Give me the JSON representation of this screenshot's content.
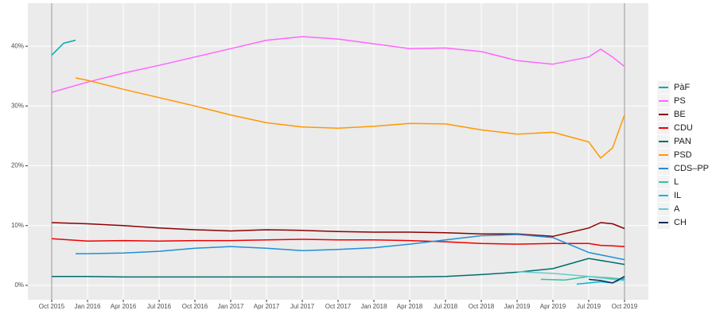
{
  "chart_data": {
    "type": "line",
    "xlim": [
      "2015-08",
      "2019-12"
    ],
    "ylim": [
      -2.4,
      47.2
    ],
    "grid": true,
    "legend": "right",
    "xticks": [
      {
        "value": "2015-10",
        "label": "Oct 2015"
      },
      {
        "value": "2016-01",
        "label": "Jan 2016"
      },
      {
        "value": "2016-04",
        "label": "Apr 2016"
      },
      {
        "value": "2016-07",
        "label": "Jul 2016"
      },
      {
        "value": "2016-10",
        "label": "Oct 2016"
      },
      {
        "value": "2017-01",
        "label": "Jan 2017"
      },
      {
        "value": "2017-04",
        "label": "Apr 2017"
      },
      {
        "value": "2017-07",
        "label": "Jul 2017"
      },
      {
        "value": "2017-10",
        "label": "Oct 2017"
      },
      {
        "value": "2018-01",
        "label": "Jan 2018"
      },
      {
        "value": "2018-04",
        "label": "Apr 2018"
      },
      {
        "value": "2018-07",
        "label": "Jul 2018"
      },
      {
        "value": "2018-10",
        "label": "Oct 2018"
      },
      {
        "value": "2019-01",
        "label": "Jan 2019"
      },
      {
        "value": "2019-04",
        "label": "Apr 2019"
      },
      {
        "value": "2019-07",
        "label": "Jul 2019"
      },
      {
        "value": "2019-10",
        "label": "Oct 2019"
      }
    ],
    "yticks": [
      {
        "value": 0,
        "label": "0%"
      },
      {
        "value": 10,
        "label": "10%"
      },
      {
        "value": 20,
        "label": "20%"
      },
      {
        "value": 30,
        "label": "30%"
      },
      {
        "value": 40,
        "label": "40%"
      }
    ],
    "series": [
      {
        "name": "PàF",
        "color": "#00a9a9",
        "x": [
          "2015-10",
          "2015-11",
          "2015-12"
        ],
        "values": [
          38.5,
          40.5,
          41
        ]
      },
      {
        "name": "PS",
        "color": "#ff66ff",
        "x": [
          "2015-10",
          "2016-01",
          "2016-04",
          "2016-07",
          "2016-10",
          "2017-01",
          "2017-04",
          "2017-07",
          "2017-10",
          "2018-01",
          "2018-04",
          "2018-07",
          "2018-10",
          "2019-01",
          "2019-04",
          "2019-07",
          "2019-08",
          "2019-09",
          "2019-10"
        ],
        "values": [
          32.3,
          34,
          35.5,
          36.8,
          38.2,
          39.6,
          41,
          41.6,
          41.2,
          40.4,
          39.6,
          39.7,
          39.1,
          37.6,
          37,
          38.2,
          39.5,
          38.2,
          36.6
        ]
      },
      {
        "name": "BE",
        "color": "#8b0000",
        "x": [
          "2015-10",
          "2016-01",
          "2016-04",
          "2016-07",
          "2016-10",
          "2017-01",
          "2017-04",
          "2017-07",
          "2017-10",
          "2018-01",
          "2018-04",
          "2018-07",
          "2018-10",
          "2019-01",
          "2019-04",
          "2019-07",
          "2019-08",
          "2019-09",
          "2019-10"
        ],
        "values": [
          10.5,
          10.3,
          10.0,
          9.6,
          9.3,
          9.1,
          9.3,
          9.2,
          9.0,
          8.9,
          8.9,
          8.8,
          8.6,
          8.6,
          8.2,
          9.6,
          10.5,
          10.3,
          9.5
        ]
      },
      {
        "name": "CDU",
        "color": "#ee0000",
        "x": [
          "2015-10",
          "2016-01",
          "2016-04",
          "2016-07",
          "2016-10",
          "2017-01",
          "2017-04",
          "2017-07",
          "2017-10",
          "2018-01",
          "2018-04",
          "2018-07",
          "2018-10",
          "2019-01",
          "2019-04",
          "2019-07",
          "2019-08",
          "2019-09",
          "2019-10"
        ],
        "values": [
          7.8,
          7.4,
          7.5,
          7.4,
          7.5,
          7.5,
          7.6,
          7.7,
          7.6,
          7.6,
          7.5,
          7.3,
          7.0,
          6.9,
          7.0,
          7.0,
          6.7,
          6.6,
          6.5
        ]
      },
      {
        "name": "PAN",
        "color": "#006d6f",
        "x": [
          "2015-10",
          "2016-01",
          "2016-04",
          "2016-07",
          "2016-10",
          "2017-01",
          "2017-04",
          "2017-07",
          "2017-10",
          "2018-01",
          "2018-04",
          "2018-07",
          "2018-10",
          "2019-01",
          "2019-04",
          "2019-07",
          "2019-10"
        ],
        "values": [
          1.5,
          1.5,
          1.4,
          1.4,
          1.4,
          1.4,
          1.4,
          1.4,
          1.4,
          1.4,
          1.4,
          1.5,
          1.8,
          2.2,
          2.8,
          4.5,
          3.5
        ]
      },
      {
        "name": "PSD",
        "color": "#ff9900",
        "x": [
          "2015-12",
          "2016-01",
          "2016-04",
          "2016-07",
          "2016-10",
          "2017-01",
          "2017-04",
          "2017-07",
          "2017-10",
          "2018-01",
          "2018-04",
          "2018-07",
          "2018-10",
          "2019-01",
          "2019-04",
          "2019-07",
          "2019-08",
          "2019-09",
          "2019-10"
        ],
        "values": [
          34.7,
          34.3,
          32.8,
          31.4,
          30.0,
          28.5,
          27.2,
          26.5,
          26.3,
          26.6,
          27.1,
          27.0,
          26.0,
          25.3,
          25.6,
          24.0,
          21.3,
          23.0,
          28.5
        ]
      },
      {
        "name": "CDS–PP",
        "color": "#1f8fd8",
        "x": [
          "2015-12",
          "2016-01",
          "2016-04",
          "2016-07",
          "2016-10",
          "2017-01",
          "2017-04",
          "2017-07",
          "2017-10",
          "2018-01",
          "2018-04",
          "2018-07",
          "2018-10",
          "2019-01",
          "2019-04",
          "2019-07",
          "2019-10"
        ],
        "values": [
          5.3,
          5.3,
          5.4,
          5.7,
          6.2,
          6.5,
          6.2,
          5.8,
          6.0,
          6.3,
          6.9,
          7.6,
          8.3,
          8.5,
          8.0,
          5.5,
          4.3
        ]
      },
      {
        "name": "L",
        "color": "#2ec4a0",
        "x": [
          "2019-03",
          "2019-05",
          "2019-07",
          "2019-09",
          "2019-10"
        ],
        "values": [
          1.0,
          0.9,
          1.5,
          1.2,
          1.0
        ]
      },
      {
        "name": "IL",
        "color": "#00b7e0",
        "x": [
          "2019-06",
          "2019-08",
          "2019-09",
          "2019-10"
        ],
        "values": [
          0.2,
          0.6,
          0.4,
          1.2
        ]
      },
      {
        "name": "A",
        "color": "#66cccc",
        "x": [
          "2019-01",
          "2019-04",
          "2019-07",
          "2019-09",
          "2019-10"
        ],
        "values": [
          2.3,
          2.0,
          1.5,
          1.0,
          0.8
        ]
      },
      {
        "name": "CH",
        "color": "#1a2a5a",
        "x": [
          "2019-07",
          "2019-08",
          "2019-09",
          "2019-10"
        ],
        "values": [
          1.0,
          0.8,
          0.4,
          1.5
        ]
      }
    ]
  }
}
